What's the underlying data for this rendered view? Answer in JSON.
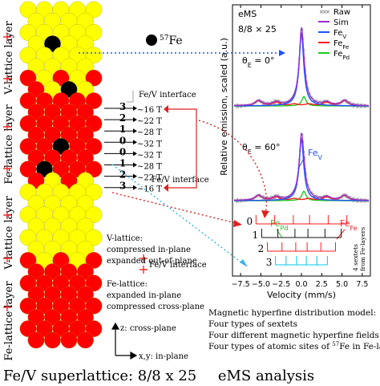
{
  "labels": {
    "isotope_prefix": "57",
    "isotope_element": "Fe",
    "layer_labels": [
      "V-lattice layer",
      "Fe-lattice layer",
      "V-lattice layer",
      "Fe-lattice layer"
    ],
    "fe_v_interface": "Fe/V interface",
    "fields": [
      "~16 T",
      "~22 T",
      "~28 T",
      "~32 T",
      "~32 T",
      "~28 T",
      "~22 T",
      "~16 T"
    ],
    "site_numbers": [
      "3",
      "2",
      "1",
      "0",
      "0",
      "1",
      "2",
      "3"
    ],
    "v_lattice_note": [
      "V-lattice:",
      "compressed in-plane",
      "expanded out-of-plane"
    ],
    "fe_lattice_note": [
      "Fe-lattice:",
      "expanded in-plane",
      "compressed cross-plane"
    ],
    "z_axis": "z: cross-plane",
    "xy_axis": "x,y: in-plane",
    "left_title": "Fe/V superlattice: 8/8 x 25",
    "right_title": "eMS analysis"
  },
  "spectrum": {
    "header": "eMS",
    "sample": "8/8 × 25",
    "theta_top": "θ",
    "theta_top_sub": "E",
    "theta_top_val": " = 0°",
    "theta_bottom": "θ",
    "theta_bottom_sub": "E",
    "theta_bottom_val": " = 60°",
    "ylabel": "Relative emission, scaled (a.u.)",
    "xlabel": "Velocity (mm/s)",
    "xticks": [
      "−7.5",
      "−5.0",
      "−2.5",
      "0.0",
      "2.5",
      "5.0",
      "7.5"
    ],
    "legend": [
      {
        "name": "Raw",
        "sub": "",
        "color": "#555555"
      },
      {
        "name": "Sim",
        "sub": "",
        "color": "#9a2bd6"
      },
      {
        "name": "Fe",
        "sub": "V",
        "color": "#2050ff"
      },
      {
        "name": "Fe",
        "sub": "Fe",
        "color": "#ff1a1a"
      },
      {
        "name": "Fe",
        "sub": "Pd",
        "color": "#1ec81e"
      }
    ],
    "inline_labels": [
      {
        "name": "Fe",
        "sub": "V",
        "color": "#2050ff"
      },
      {
        "name": "Fe",
        "sub": "Pd",
        "color": "#1ec81e"
      },
      {
        "name": "Fe",
        "sub": "Fe",
        "color": "#ff1a1a"
      }
    ],
    "sextet_numbers": [
      "0",
      "1",
      "2",
      "3"
    ],
    "sextet_note": [
      "4 sextets",
      "from Fe-layers"
    ]
  },
  "model_text": [
    "Magnetic hyperfine distribution model:",
    "Four types of sextets",
    "Four different magnetic hyperfine fields",
    "Four types of atomic sites of ",
    "Fe in Fe-layers"
  ],
  "colors": {
    "v_atom": "#ffff00",
    "fe_atom": "#ff0000",
    "fe57": "#000000",
    "sextet": [
      "#ff1a1a",
      "#111111",
      "#ff1a1a",
      "#00c8e8"
    ]
  }
}
